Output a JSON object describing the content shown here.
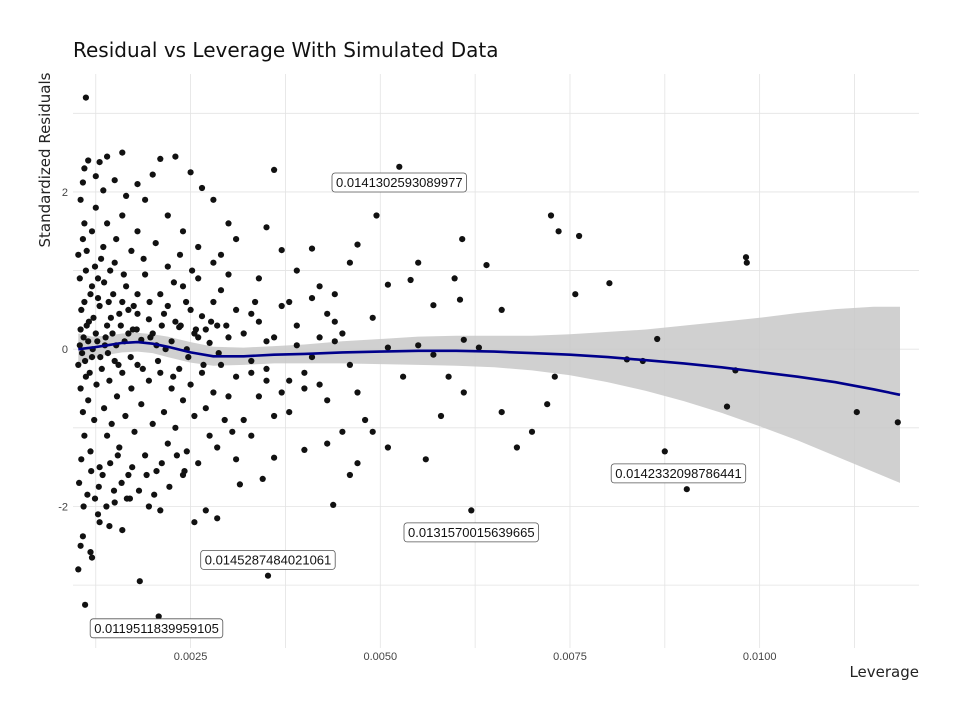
{
  "chart_data": {
    "type": "scatter",
    "title": "Residual vs Leverage With Simulated Data",
    "xlabel": "Leverage",
    "ylabel": "Standardized Residuals",
    "xlim": [
      0.00095,
      0.0121
    ],
    "ylim": [
      -3.8,
      3.5
    ],
    "x_ticks": [
      0.0025,
      0.005,
      0.0075,
      0.01
    ],
    "x_tick_labels": [
      "0.0025",
      "0.0050",
      "0.0075",
      "0.0100"
    ],
    "y_ticks": [
      -2,
      0,
      2
    ],
    "y_tick_labels": [
      "-2",
      "0",
      "2"
    ],
    "grid": true,
    "legend": "none",
    "colors": {
      "points": "#111111",
      "smooth_line": "#00008b",
      "confidence_band": "#c8c8c8",
      "grid": "#e3e3e3"
    },
    "smooth": {
      "x": [
        0.00102,
        0.0012,
        0.0014,
        0.0016,
        0.0018,
        0.002,
        0.0022,
        0.0025,
        0.0028,
        0.0032,
        0.0036,
        0.004,
        0.0045,
        0.005,
        0.0055,
        0.006,
        0.0065,
        0.007,
        0.0075,
        0.008,
        0.0085,
        0.009,
        0.0095,
        0.01,
        0.0105,
        0.011,
        0.0115,
        0.01185
      ],
      "y": [
        0.0,
        0.02,
        0.05,
        0.08,
        0.09,
        0.07,
        0.03,
        -0.04,
        -0.09,
        -0.09,
        -0.07,
        -0.06,
        -0.04,
        -0.03,
        -0.02,
        -0.02,
        -0.03,
        -0.05,
        -0.07,
        -0.1,
        -0.14,
        -0.18,
        -0.23,
        -0.29,
        -0.35,
        -0.42,
        -0.51,
        -0.58
      ],
      "lower": [
        -0.2,
        -0.12,
        -0.07,
        -0.04,
        -0.03,
        -0.05,
        -0.1,
        -0.17,
        -0.21,
        -0.2,
        -0.18,
        -0.18,
        -0.18,
        -0.19,
        -0.2,
        -0.21,
        -0.23,
        -0.27,
        -0.33,
        -0.42,
        -0.53,
        -0.66,
        -0.81,
        -0.98,
        -1.16,
        -1.36,
        -1.56,
        -1.7
      ],
      "upper": [
        0.2,
        0.16,
        0.17,
        0.2,
        0.21,
        0.19,
        0.16,
        0.09,
        0.03,
        0.02,
        0.04,
        0.06,
        0.1,
        0.13,
        0.16,
        0.17,
        0.17,
        0.17,
        0.19,
        0.22,
        0.25,
        0.3,
        0.35,
        0.4,
        0.46,
        0.51,
        0.54,
        0.54
      ]
    },
    "annotations": [
      {
        "text": "0.0141302593089977",
        "x": 0.00525,
        "y": 2.12
      },
      {
        "text": "0.0142332098786441",
        "x": 0.00893,
        "y": -1.58
      },
      {
        "text": "0.0131570015639665",
        "x": 0.0062,
        "y": -2.33
      },
      {
        "text": "0.0145287484021061",
        "x": 0.00352,
        "y": -2.68
      },
      {
        "text": "0.0119511839959105",
        "x": 0.00205,
        "y": -3.55
      }
    ],
    "points": [
      [
        0.00112,
        3.2
      ],
      [
        0.00208,
        -3.4
      ],
      [
        0.00111,
        -3.25
      ],
      [
        0.00352,
        -2.88
      ],
      [
        0.00183,
        -2.95
      ],
      [
        0.0062,
        -2.05
      ],
      [
        0.00904,
        -1.78
      ],
      [
        0.00525,
        2.32
      ],
      [
        0.00102,
        -2.8
      ],
      [
        0.00105,
        -2.5
      ],
      [
        0.0012,
        -2.65
      ],
      [
        0.00118,
        -2.58
      ],
      [
        0.00108,
        -2.38
      ],
      [
        0.0013,
        -2.2
      ],
      [
        0.00143,
        -2.25
      ],
      [
        0.0016,
        -2.3
      ],
      [
        0.00255,
        -2.2
      ],
      [
        0.00285,
        -2.15
      ],
      [
        0.0027,
        -2.05
      ],
      [
        0.00315,
        -1.72
      ],
      [
        0.00345,
        -1.65
      ],
      [
        0.00438,
        -1.98
      ],
      [
        0.0047,
        -1.45
      ],
      [
        0.0046,
        -1.6
      ],
      [
        0.0031,
        -1.4
      ],
      [
        0.0024,
        -1.6
      ],
      [
        0.0021,
        -2.05
      ],
      [
        0.00195,
        -2.0
      ],
      [
        0.0017,
        -1.9
      ],
      [
        0.0015,
        -1.95
      ],
      [
        0.00128,
        -2.1
      ],
      [
        0.0036,
        -1.38
      ],
      [
        0.004,
        -1.28
      ],
      [
        0.0043,
        -1.2
      ],
      [
        0.0049,
        -1.05
      ],
      [
        0.0051,
        -1.25
      ],
      [
        0.0058,
        -0.85
      ],
      [
        0.0056,
        -1.4
      ],
      [
        0.0061,
        -0.55
      ],
      [
        0.0068,
        -1.25
      ],
      [
        0.0066,
        -0.8
      ],
      [
        0.007,
        -1.05
      ],
      [
        0.0072,
        -0.7
      ],
      [
        0.00875,
        -1.3
      ],
      [
        0.00957,
        -0.73
      ],
      [
        0.01128,
        -0.8
      ],
      [
        0.01182,
        -0.93
      ],
      [
        0.00968,
        -0.27
      ],
      [
        0.00846,
        -0.15
      ],
      [
        0.00865,
        0.13
      ],
      [
        0.00825,
        -0.13
      ],
      [
        0.0073,
        -0.35
      ],
      [
        0.0063,
        0.02
      ],
      [
        0.0061,
        0.12
      ],
      [
        0.0059,
        -0.35
      ],
      [
        0.0055,
        0.05
      ],
      [
        0.0053,
        -0.35
      ],
      [
        0.0057,
        -0.07
      ],
      [
        0.0051,
        0.02
      ],
      [
        0.0049,
        0.4
      ],
      [
        0.0046,
        -0.2
      ],
      [
        0.0044,
        0.1
      ],
      [
        0.0041,
        -0.1
      ],
      [
        0.0039,
        0.3
      ],
      [
        0.0037,
        -0.55
      ],
      [
        0.0038,
        0.6
      ],
      [
        0.0035,
        0.1
      ],
      [
        0.0033,
        0.45
      ],
      [
        0.0033,
        -0.3
      ],
      [
        0.0032,
        -0.9
      ],
      [
        0.0042,
        0.15
      ],
      [
        0.0045,
        0.2
      ],
      [
        0.0048,
        -0.9
      ],
      [
        0.00982,
        1.17
      ],
      [
        0.00983,
        1.1
      ],
      [
        0.00802,
        0.84
      ],
      [
        0.00762,
        1.44
      ],
      [
        0.00757,
        0.7
      ],
      [
        0.00735,
        1.5
      ],
      [
        0.00725,
        1.7
      ],
      [
        0.0066,
        0.5
      ],
      [
        0.0064,
        1.07
      ],
      [
        0.00608,
        1.4
      ],
      [
        0.00605,
        0.63
      ],
      [
        0.00598,
        0.9
      ],
      [
        0.0057,
        0.56
      ],
      [
        0.0055,
        1.1
      ],
      [
        0.0054,
        0.88
      ],
      [
        0.0051,
        0.82
      ],
      [
        0.00495,
        1.7
      ],
      [
        0.0047,
        1.33
      ],
      [
        0.0046,
        1.1
      ],
      [
        0.0044,
        0.7
      ],
      [
        0.0042,
        0.8
      ],
      [
        0.0041,
        1.28
      ],
      [
        0.0039,
        1.0
      ],
      [
        0.0037,
        1.26
      ],
      [
        0.0035,
        1.55
      ],
      [
        0.0036,
        2.28
      ],
      [
        0.00335,
        0.6
      ],
      [
        0.0031,
        1.4
      ],
      [
        0.003,
        0.95
      ],
      [
        0.0029,
        1.2
      ],
      [
        0.0028,
        1.9
      ],
      [
        0.00265,
        2.05
      ],
      [
        0.0025,
        2.25
      ],
      [
        0.0023,
        2.45
      ],
      [
        0.0021,
        2.42
      ],
      [
        0.002,
        2.22
      ],
      [
        0.0019,
        1.9
      ],
      [
        0.0016,
        2.5
      ],
      [
        0.0014,
        2.45
      ],
      [
        0.0013,
        2.38
      ],
      [
        0.0011,
        2.3
      ],
      [
        0.00108,
        2.12
      ],
      [
        0.00115,
        2.4
      ],
      [
        0.00125,
        2.2
      ],
      [
        0.00135,
        2.02
      ],
      [
        0.0015,
        2.15
      ],
      [
        0.00165,
        1.95
      ],
      [
        0.0018,
        2.1
      ],
      [
        0.00125,
        1.8
      ],
      [
        0.0014,
        1.6
      ],
      [
        0.0016,
        1.7
      ],
      [
        0.0018,
        1.5
      ],
      [
        0.0022,
        1.7
      ],
      [
        0.0024,
        1.5
      ],
      [
        0.0026,
        1.3
      ],
      [
        0.0028,
        1.1
      ],
      [
        0.003,
        1.6
      ],
      [
        0.00105,
        1.9
      ],
      [
        0.00108,
        1.4
      ],
      [
        0.00112,
        1.0
      ],
      [
        0.00118,
        0.7
      ],
      [
        0.00122,
        0.4
      ],
      [
        0.00128,
        0.9
      ],
      [
        0.00135,
        1.3
      ],
      [
        0.00142,
        0.6
      ],
      [
        0.0015,
        1.1
      ],
      [
        0.00158,
        0.3
      ],
      [
        0.00165,
        0.8
      ],
      [
        0.00172,
        1.25
      ],
      [
        0.0018,
        0.45
      ],
      [
        0.0019,
        0.95
      ],
      [
        0.002,
        0.2
      ],
      [
        0.0021,
        0.7
      ],
      [
        0.0022,
        1.05
      ],
      [
        0.0023,
        0.35
      ],
      [
        0.0024,
        0.8
      ],
      [
        0.0025,
        0.5
      ],
      [
        0.0026,
        0.9
      ],
      [
        0.0027,
        0.25
      ],
      [
        0.0028,
        0.6
      ],
      [
        0.00285,
        0.3
      ],
      [
        0.0029,
        0.75
      ],
      [
        0.003,
        0.15
      ],
      [
        0.0031,
        0.5
      ],
      [
        0.00105,
        0.25
      ],
      [
        0.0011,
        0.6
      ],
      [
        0.00115,
        0.1
      ],
      [
        0.0012,
        0.8
      ],
      [
        0.00125,
        0.2
      ],
      [
        0.0013,
        0.55
      ],
      [
        0.00138,
        0.15
      ],
      [
        0.00145,
        0.4
      ],
      [
        0.00152,
        0.05
      ],
      [
        0.0016,
        0.6
      ],
      [
        0.00168,
        0.2
      ],
      [
        0.00175,
        0.55
      ],
      [
        0.00185,
        0.12
      ],
      [
        0.00195,
        0.38
      ],
      [
        0.00205,
        0.05
      ],
      [
        0.00215,
        0.45
      ],
      [
        0.00225,
        0.1
      ],
      [
        0.00235,
        0.28
      ],
      [
        0.00245,
        0.0
      ],
      [
        0.00255,
        0.2
      ],
      [
        0.00265,
        0.42
      ],
      [
        0.00275,
        0.08
      ],
      [
        0.00102,
        1.2
      ],
      [
        0.00104,
        0.9
      ],
      [
        0.00106,
        0.5
      ],
      [
        0.0011,
        1.6
      ],
      [
        0.00113,
        1.25
      ],
      [
        0.00116,
        0.35
      ],
      [
        0.0012,
        1.5
      ],
      [
        0.00124,
        1.05
      ],
      [
        0.00128,
        0.65
      ],
      [
        0.00132,
        1.15
      ],
      [
        0.00136,
        0.85
      ],
      [
        0.0014,
        0.3
      ],
      [
        0.00144,
        1.0
      ],
      [
        0.00148,
        0.7
      ],
      [
        0.00152,
        1.4
      ],
      [
        0.00156,
        0.45
      ],
      [
        0.00162,
        0.95
      ],
      [
        0.00168,
        0.5
      ],
      [
        0.00174,
        0.25
      ],
      [
        0.0018,
        0.7
      ],
      [
        0.00188,
        1.15
      ],
      [
        0.00196,
        0.6
      ],
      [
        0.00204,
        1.35
      ],
      [
        0.00212,
        0.3
      ],
      [
        0.0022,
        0.55
      ],
      [
        0.00228,
        0.85
      ],
      [
        0.00236,
        1.2
      ],
      [
        0.00244,
        0.6
      ],
      [
        0.00252,
        1.0
      ],
      [
        0.0026,
        0.15
      ],
      [
        0.00102,
        -0.2
      ],
      [
        0.00105,
        -0.5
      ],
      [
        0.00108,
        -0.8
      ],
      [
        0.0011,
        -1.1
      ],
      [
        0.00112,
        -0.35
      ],
      [
        0.00115,
        -0.65
      ],
      [
        0.00118,
        -1.3
      ],
      [
        0.0012,
        -0.1
      ],
      [
        0.00123,
        -0.9
      ],
      [
        0.00126,
        -0.45
      ],
      [
        0.0013,
        -1.5
      ],
      [
        0.00133,
        -0.25
      ],
      [
        0.00136,
        -0.75
      ],
      [
        0.0014,
        -1.1
      ],
      [
        0.00143,
        -0.4
      ],
      [
        0.00146,
        -0.95
      ],
      [
        0.0015,
        -0.15
      ],
      [
        0.00153,
        -0.6
      ],
      [
        0.00156,
        -1.25
      ],
      [
        0.0016,
        -0.3
      ],
      [
        0.00164,
        -0.85
      ],
      [
        0.00168,
        -1.6
      ],
      [
        0.00172,
        -0.5
      ],
      [
        0.00176,
        -1.05
      ],
      [
        0.0018,
        -0.2
      ],
      [
        0.00185,
        -0.7
      ],
      [
        0.0019,
        -1.35
      ],
      [
        0.00195,
        -0.4
      ],
      [
        0.002,
        -0.95
      ],
      [
        0.00205,
        -1.55
      ],
      [
        0.0021,
        -0.3
      ],
      [
        0.00215,
        -0.8
      ],
      [
        0.0022,
        -1.2
      ],
      [
        0.00225,
        -0.5
      ],
      [
        0.0023,
        -1.0
      ],
      [
        0.00235,
        -0.25
      ],
      [
        0.0024,
        -0.65
      ],
      [
        0.00245,
        -1.3
      ],
      [
        0.0025,
        -0.45
      ],
      [
        0.00255,
        -0.85
      ],
      [
        0.0026,
        -1.45
      ],
      [
        0.00265,
        -0.3
      ],
      [
        0.0027,
        -0.75
      ],
      [
        0.00275,
        -1.1
      ],
      [
        0.0028,
        -0.55
      ],
      [
        0.00285,
        -1.25
      ],
      [
        0.0029,
        -0.2
      ],
      [
        0.00295,
        -0.9
      ],
      [
        0.003,
        -0.6
      ],
      [
        0.00305,
        -1.05
      ],
      [
        0.00103,
        -1.7
      ],
      [
        0.00106,
        -1.4
      ],
      [
        0.00109,
        -2.0
      ],
      [
        0.00114,
        -1.85
      ],
      [
        0.00119,
        -1.55
      ],
      [
        0.00124,
        -1.9
      ],
      [
        0.00129,
        -1.75
      ],
      [
        0.00134,
        -1.6
      ],
      [
        0.00139,
        -2.0
      ],
      [
        0.00144,
        -1.45
      ],
      [
        0.00149,
        -1.8
      ],
      [
        0.00154,
        -1.35
      ],
      [
        0.00159,
        -1.7
      ],
      [
        0.00166,
        -1.9
      ],
      [
        0.00173,
        -1.5
      ],
      [
        0.00182,
        -1.8
      ],
      [
        0.00192,
        -1.6
      ],
      [
        0.00202,
        -1.85
      ],
      [
        0.00212,
        -1.45
      ],
      [
        0.00222,
        -1.75
      ],
      [
        0.00232,
        -1.35
      ],
      [
        0.00242,
        -1.55
      ],
      [
        0.00104,
        0.05
      ],
      [
        0.00107,
        -0.05
      ],
      [
        0.00109,
        0.15
      ],
      [
        0.00111,
        -0.15
      ],
      [
        0.00113,
        0.3
      ],
      [
        0.00117,
        -0.3
      ],
      [
        0.00121,
        0.0
      ],
      [
        0.00127,
        0.1
      ],
      [
        0.00131,
        -0.1
      ],
      [
        0.00137,
        0.05
      ],
      [
        0.00141,
        -0.05
      ],
      [
        0.00147,
        0.2
      ],
      [
        0.00155,
        -0.2
      ],
      [
        0.00163,
        0.1
      ],
      [
        0.00171,
        -0.1
      ],
      [
        0.00179,
        0.25
      ],
      [
        0.00187,
        -0.25
      ],
      [
        0.00197,
        0.15
      ],
      [
        0.00207,
        -0.15
      ],
      [
        0.00217,
        0.0
      ],
      [
        0.00227,
        -0.35
      ],
      [
        0.00237,
        0.3
      ],
      [
        0.00247,
        -0.1
      ],
      [
        0.00257,
        0.25
      ],
      [
        0.00267,
        -0.2
      ],
      [
        0.00277,
        0.35
      ],
      [
        0.00287,
        -0.05
      ],
      [
        0.00297,
        0.3
      ],
      [
        0.0031,
        -0.35
      ],
      [
        0.0032,
        0.2
      ],
      [
        0.0033,
        -0.15
      ],
      [
        0.0034,
        0.35
      ],
      [
        0.0035,
        -0.25
      ],
      [
        0.0036,
        0.15
      ],
      [
        0.0038,
        -0.4
      ],
      [
        0.0039,
        0.05
      ],
      [
        0.004,
        -0.3
      ],
      [
        0.0042,
        -0.45
      ],
      [
        0.0044,
        0.35
      ],
      [
        0.0047,
        -0.55
      ],
      [
        0.0034,
        -0.6
      ],
      [
        0.0036,
        -0.85
      ],
      [
        0.0033,
        -1.1
      ],
      [
        0.0035,
        -0.4
      ],
      [
        0.0038,
        -0.8
      ],
      [
        0.004,
        -0.5
      ],
      [
        0.0043,
        -0.65
      ],
      [
        0.0045,
        -1.05
      ],
      [
        0.0034,
        0.9
      ],
      [
        0.0037,
        0.55
      ],
      [
        0.0041,
        0.65
      ],
      [
        0.0043,
        0.45
      ]
    ]
  }
}
